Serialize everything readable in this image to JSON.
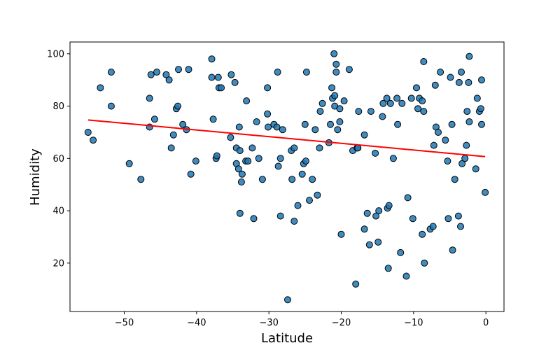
{
  "chart_data": {
    "type": "scatter",
    "title": "",
    "xlabel": "Latitude",
    "ylabel": "Humidity",
    "xlim": [
      -57.5,
      2.5
    ],
    "ylim": [
      1.5,
      104.5
    ],
    "xticks": [
      -50,
      -40,
      -30,
      -20,
      -10,
      0
    ],
    "yticks": [
      20,
      40,
      60,
      80,
      100
    ],
    "xtick_labels": [
      "−50",
      "−40",
      "−30",
      "−20",
      "−10",
      "0"
    ],
    "ytick_labels": [
      "20",
      "40",
      "60",
      "80",
      "100"
    ],
    "grid": false,
    "marker_color": "#1f77b4",
    "marker_edge_color": "#000000",
    "regression_line": {
      "x": [
        -55,
        -0.1
      ],
      "y": [
        74.7,
        60.7
      ],
      "color": "#ff0000"
    },
    "points": [
      [
        -55,
        70
      ],
      [
        -54.3,
        67
      ],
      [
        -53.3,
        87
      ],
      [
        -51.8,
        93
      ],
      [
        -51.8,
        80
      ],
      [
        -49.3,
        58
      ],
      [
        -47.7,
        52
      ],
      [
        -46.5,
        83
      ],
      [
        -46.3,
        92
      ],
      [
        -46.5,
        72
      ],
      [
        -45.8,
        75
      ],
      [
        -45.5,
        93
      ],
      [
        -44.2,
        92
      ],
      [
        -43.8,
        90
      ],
      [
        -43.5,
        64
      ],
      [
        -43.2,
        69
      ],
      [
        -42.8,
        79
      ],
      [
        -42.6,
        80
      ],
      [
        -42.5,
        94
      ],
      [
        -41.9,
        73
      ],
      [
        -41.4,
        71
      ],
      [
        -41.1,
        94
      ],
      [
        -40.8,
        54
      ],
      [
        -40.1,
        59
      ],
      [
        -37.9,
        98
      ],
      [
        -37.9,
        91
      ],
      [
        -37.7,
        75
      ],
      [
        -37.3,
        60
      ],
      [
        -37.2,
        61
      ],
      [
        -37.0,
        91
      ],
      [
        -36.9,
        87
      ],
      [
        -36.6,
        87
      ],
      [
        -35.3,
        68
      ],
      [
        -35.2,
        92
      ],
      [
        -34.7,
        89
      ],
      [
        -34.5,
        64
      ],
      [
        -34.5,
        58
      ],
      [
        -34.2,
        56
      ],
      [
        -34.1,
        72
      ],
      [
        -34.0,
        63
      ],
      [
        -34.0,
        39
      ],
      [
        -33.8,
        51
      ],
      [
        -33.7,
        54
      ],
      [
        -33.2,
        59
      ],
      [
        -33.1,
        82
      ],
      [
        -32.9,
        59
      ],
      [
        -32.3,
        64
      ],
      [
        -32.1,
        37
      ],
      [
        -31.7,
        74
      ],
      [
        -31.4,
        60
      ],
      [
        -30.9,
        52
      ],
      [
        -30.2,
        77
      ],
      [
        -30.2,
        87
      ],
      [
        -30.1,
        72
      ],
      [
        -29.3,
        73
      ],
      [
        -28.9,
        72
      ],
      [
        -28.8,
        93
      ],
      [
        -28.7,
        57
      ],
      [
        -28.4,
        60
      ],
      [
        -28.4,
        38
      ],
      [
        -28.1,
        71
      ],
      [
        -27.4,
        6
      ],
      [
        -26.9,
        63
      ],
      [
        -26.8,
        52
      ],
      [
        -26.5,
        64
      ],
      [
        -26.5,
        36
      ],
      [
        -26.0,
        42
      ],
      [
        -25.4,
        54
      ],
      [
        -25.2,
        58
      ],
      [
        -25.0,
        73
      ],
      [
        -24.9,
        59
      ],
      [
        -24.8,
        93
      ],
      [
        -24.4,
        44
      ],
      [
        -24.0,
        52
      ],
      [
        -23.6,
        71
      ],
      [
        -23.3,
        46
      ],
      [
        -23.0,
        64
      ],
      [
        -22.9,
        78
      ],
      [
        -22.6,
        81
      ],
      [
        -21.7,
        66
      ],
      [
        -21.5,
        73
      ],
      [
        -21.3,
        87
      ],
      [
        -21.2,
        83
      ],
      [
        -21.0,
        100
      ],
      [
        -20.9,
        84
      ],
      [
        -20.9,
        80
      ],
      [
        -20.7,
        96
      ],
      [
        -20.7,
        93
      ],
      [
        -20.5,
        71
      ],
      [
        -20.2,
        79
      ],
      [
        -20.2,
        74
      ],
      [
        -20.0,
        31
      ],
      [
        -19.6,
        82
      ],
      [
        -18.9,
        94
      ],
      [
        -18.4,
        63
      ],
      [
        -18.0,
        12
      ],
      [
        -17.8,
        64
      ],
      [
        -17.7,
        64
      ],
      [
        -17.6,
        78
      ],
      [
        -16.8,
        69
      ],
      [
        -16.8,
        33
      ],
      [
        -16.4,
        39
      ],
      [
        -16.1,
        27
      ],
      [
        -15.9,
        78
      ],
      [
        -15.3,
        62
      ],
      [
        -15.2,
        38
      ],
      [
        -14.9,
        28
      ],
      [
        -14.8,
        40
      ],
      [
        -14.3,
        76
      ],
      [
        -14.2,
        81
      ],
      [
        -13.7,
        83
      ],
      [
        -13.6,
        41
      ],
      [
        -13.5,
        18
      ],
      [
        -13.4,
        42
      ],
      [
        -13.2,
        81
      ],
      [
        -12.8,
        60
      ],
      [
        -12.3,
        83
      ],
      [
        -12.2,
        73
      ],
      [
        -11.8,
        24
      ],
      [
        -11.6,
        81
      ],
      [
        -11.0,
        15
      ],
      [
        -10.8,
        45
      ],
      [
        -10.3,
        83
      ],
      [
        -10.1,
        37
      ],
      [
        -9.6,
        87
      ],
      [
        -9.4,
        79
      ],
      [
        -9.2,
        83
      ],
      [
        -8.8,
        82
      ],
      [
        -8.8,
        31
      ],
      [
        -8.6,
        97
      ],
      [
        -8.6,
        78
      ],
      [
        -8.5,
        20
      ],
      [
        -7.7,
        33
      ],
      [
        -7.3,
        34
      ],
      [
        -7.2,
        65
      ],
      [
        -7.0,
        88
      ],
      [
        -6.9,
        72
      ],
      [
        -6.6,
        70
      ],
      [
        -6.3,
        93
      ],
      [
        -5.6,
        67
      ],
      [
        -5.3,
        59
      ],
      [
        -5.2,
        37
      ],
      [
        -4.9,
        91
      ],
      [
        -4.7,
        73
      ],
      [
        -4.6,
        25
      ],
      [
        -4.3,
        52
      ],
      [
        -3.8,
        38
      ],
      [
        -3.7,
        89
      ],
      [
        -3.5,
        34
      ],
      [
        -3.4,
        93
      ],
      [
        -3.3,
        58
      ],
      [
        -2.9,
        60
      ],
      [
        -2.7,
        65
      ],
      [
        -2.6,
        78
      ],
      [
        -2.4,
        89
      ],
      [
        -2.3,
        99
      ],
      [
        -2.3,
        74
      ],
      [
        -1.4,
        56
      ],
      [
        -1.2,
        83
      ],
      [
        -0.9,
        78
      ],
      [
        -0.7,
        79
      ],
      [
        -0.6,
        90
      ],
      [
        -0.6,
        73
      ],
      [
        -0.1,
        47
      ]
    ]
  }
}
